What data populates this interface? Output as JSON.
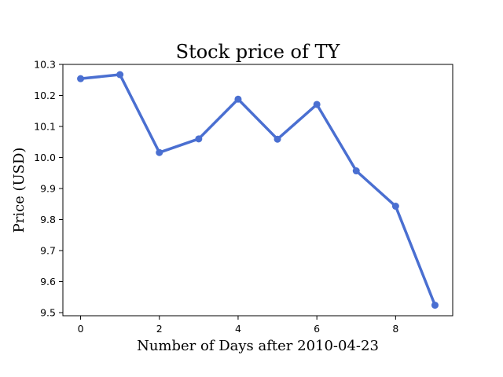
{
  "chart_data": {
    "type": "line",
    "title": "Stock price of TY",
    "xlabel": "Number of Days after 2010-04-23",
    "ylabel": "Price (USD)",
    "x": [
      0,
      1,
      2,
      3,
      4,
      5,
      6,
      7,
      8,
      9
    ],
    "series": [
      {
        "values": [
          10.254,
          10.267,
          10.016,
          10.06,
          10.188,
          10.059,
          10.171,
          9.957,
          9.843,
          9.524
        ]
      }
    ],
    "xlim": [
      -0.45,
      9.45
    ],
    "ylim": [
      9.49,
      10.3
    ],
    "xticks": [
      0,
      2,
      4,
      6,
      8
    ],
    "xtick_labels": [
      "0",
      "2",
      "4",
      "6",
      "8"
    ],
    "yticks": [
      9.5,
      9.6,
      9.7,
      9.8,
      9.9,
      10.0,
      10.1,
      10.2,
      10.3
    ],
    "ytick_labels": [
      "9.5",
      "9.6",
      "9.7",
      "9.8",
      "9.9",
      "10.0",
      "10.1",
      "10.2",
      "10.3"
    ],
    "grid": false,
    "line_color": "#4a6fd1"
  }
}
